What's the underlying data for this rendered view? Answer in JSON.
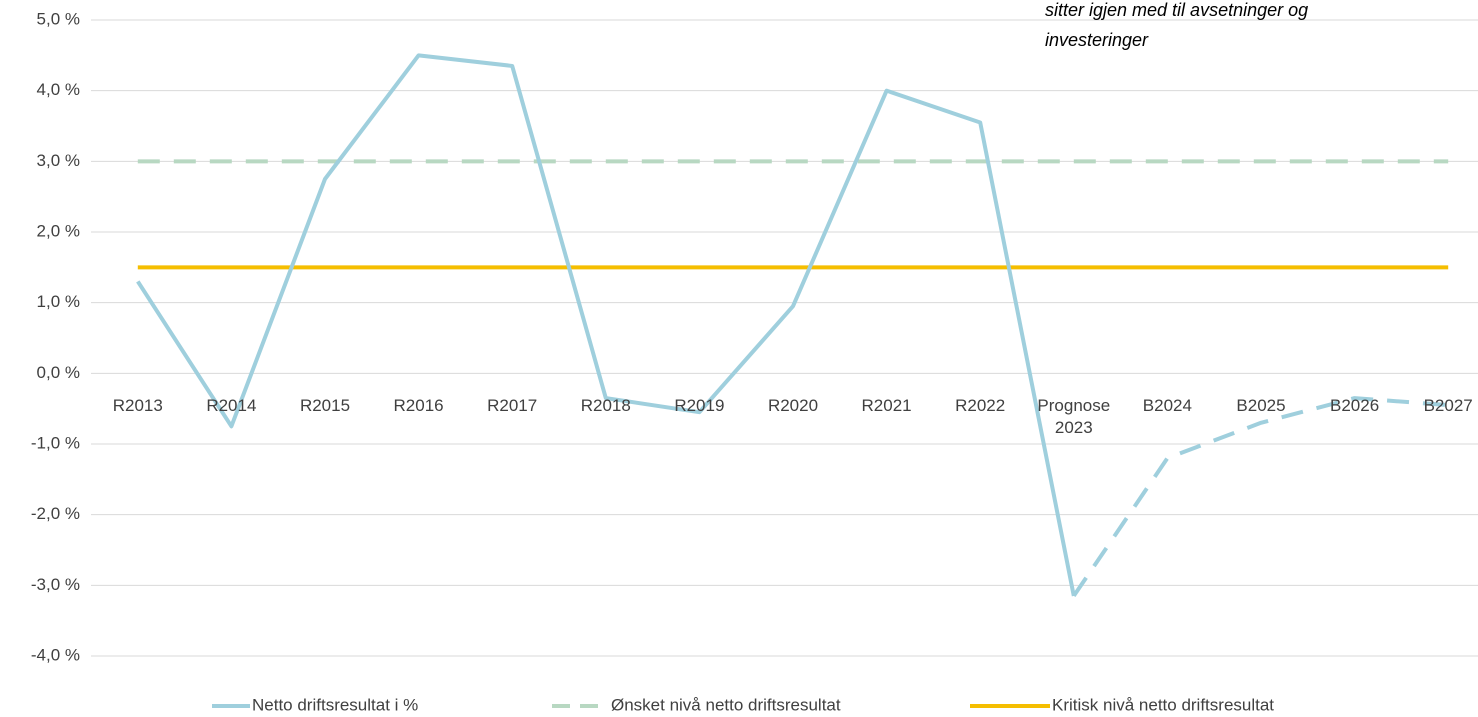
{
  "chart_data": {
    "type": "line",
    "annotation": [
      "sitter igjen med til avsetninger og",
      "investeringer"
    ],
    "categories": [
      "R2013",
      "R2014",
      "R2015",
      "R2016",
      "R2017",
      "R2018",
      "R2019",
      "R2020",
      "R2021",
      "R2022",
      "Prognose 2023",
      "B2024",
      "B2025",
      "B2026",
      "B2027"
    ],
    "series": [
      {
        "name": "Netto driftsresultat i %",
        "color": "#9fcfdd",
        "dashed_from": 10,
        "values": [
          1.3,
          -0.75,
          2.75,
          4.5,
          4.35,
          -0.35,
          -0.55,
          0.95,
          4.0,
          3.55,
          -3.15,
          -1.2,
          -0.7,
          -0.35,
          -0.45
        ]
      },
      {
        "name": "Ønsket nivå netto driftsresultat",
        "color": "#b8d8c2",
        "dashed": true,
        "values": [
          3,
          3,
          3,
          3,
          3,
          3,
          3,
          3,
          3,
          3,
          3,
          3,
          3,
          3,
          3
        ]
      },
      {
        "name": "Kritisk nivå netto driftsresultat",
        "color": "#f5be00",
        "dashed": false,
        "values": [
          1.5,
          1.5,
          1.5,
          1.5,
          1.5,
          1.5,
          1.5,
          1.5,
          1.5,
          1.5,
          1.5,
          1.5,
          1.5,
          1.5,
          1.5
        ]
      }
    ],
    "ylim": [
      -4,
      5
    ],
    "yticks": [
      {
        "value": 5,
        "label": "5,0 %"
      },
      {
        "value": 4,
        "label": "4,0 %"
      },
      {
        "value": 3,
        "label": "3,0 %"
      },
      {
        "value": 2,
        "label": "2,0 %"
      },
      {
        "value": 1,
        "label": "1,0 %"
      },
      {
        "value": 0,
        "label": "0,0 %"
      },
      {
        "value": -1,
        "label": "-1,0 %"
      },
      {
        "value": -2,
        "label": "-2,0 %"
      },
      {
        "value": -3,
        "label": "-3,0 %"
      },
      {
        "value": -4,
        "label": "-4,0 %"
      }
    ],
    "grid": true
  }
}
